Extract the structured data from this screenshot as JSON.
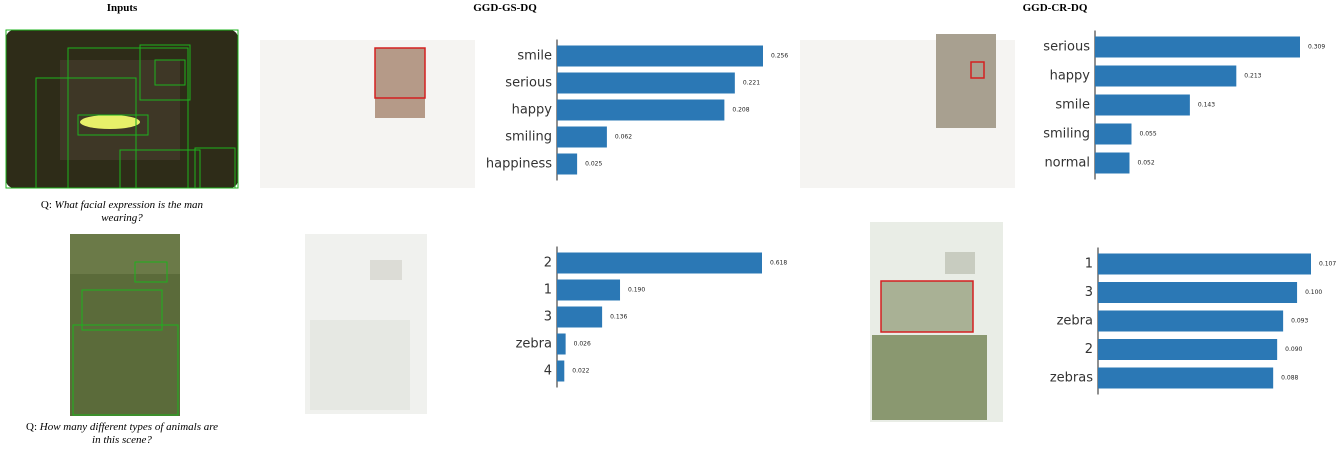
{
  "headers": [
    "Inputs",
    "GGD-GS-DQ",
    "GGD-CR-DQ"
  ],
  "questions": [
    {
      "prefix": "Q:",
      "text": "What facial expression is the man wearing?"
    },
    {
      "prefix": "Q:",
      "text": "How many different types of animals are in this scene?"
    }
  ],
  "chart_data": [
    {
      "type": "bar",
      "categories": [
        "smile",
        "serious",
        "happy",
        "smiling",
        "happiness"
      ],
      "values": [
        0.256,
        0.221,
        0.208,
        0.062,
        0.025
      ],
      "value_labels": [
        "0.256",
        "0.221",
        "0.208",
        "0.062",
        "0.025"
      ],
      "xlim": [
        0,
        0.256
      ],
      "color": "#2b78b5",
      "highlight": 1,
      "highlight_color": "#e8302a"
    },
    {
      "type": "bar",
      "categories": [
        "serious",
        "happy",
        "smile",
        "smiling",
        "normal"
      ],
      "values": [
        0.309,
        0.213,
        0.143,
        0.055,
        0.052
      ],
      "value_labels": [
        "0.309",
        "0.213",
        "0.143",
        "0.055",
        "0.052"
      ],
      "xlim": [
        0,
        0.309
      ],
      "color": "#2b78b5",
      "highlight": 0,
      "highlight_color": "#e8302a"
    },
    {
      "type": "bar",
      "categories": [
        "2",
        "1",
        "3",
        "zebra",
        "4"
      ],
      "values": [
        0.618,
        0.19,
        0.136,
        0.026,
        0.022
      ],
      "value_labels": [
        "0.618",
        "0.190",
        "0.136",
        "0.026",
        "0.022"
      ],
      "xlim": [
        0,
        0.618
      ],
      "color": "#2b78b5",
      "highlight": 1,
      "highlight_color": "#e8302a"
    },
    {
      "type": "bar",
      "categories": [
        "1",
        "3",
        "zebra",
        "2",
        "zebras"
      ],
      "values": [
        0.107,
        0.1,
        0.093,
        0.09,
        0.088
      ],
      "value_labels": [
        "0.107",
        "0.100",
        "0.093",
        "0.090",
        "0.088"
      ],
      "xlim": [
        0,
        0.107
      ],
      "color": "#2b78b5",
      "highlight": 0,
      "highlight_color": "#e8302a"
    }
  ]
}
